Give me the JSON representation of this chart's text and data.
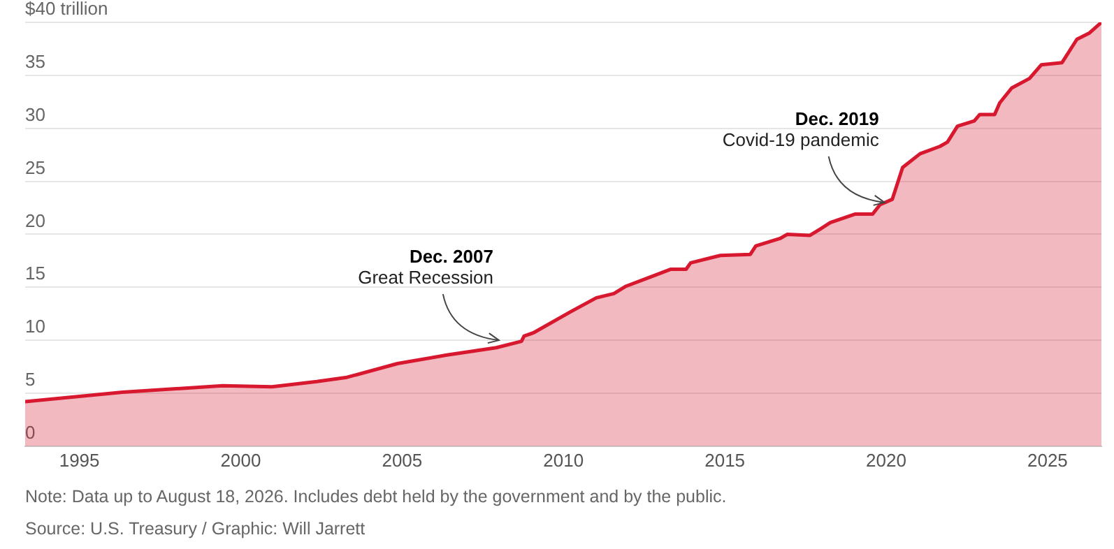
{
  "chart_data": {
    "type": "area",
    "x": [
      1993.32,
      1996.34,
      1999.44,
      2000.97,
      2002.36,
      2003.29,
      2004.86,
      2006.39,
      2007.92,
      2008.7,
      2008.78,
      2009.07,
      2010.23,
      2011.02,
      2011.56,
      2011.94,
      2012.72,
      2013.33,
      2013.8,
      2013.94,
      2014.86,
      2015.79,
      2015.96,
      2016.71,
      2016.94,
      2017.64,
      2017.96,
      2018.27,
      2019.03,
      2019.58,
      2019.81,
      2020.19,
      2020.51,
      2021.05,
      2021.67,
      2021.9,
      2022.21,
      2022.73,
      2022.9,
      2023.36,
      2023.52,
      2023.89,
      2024.44,
      2024.81,
      2025.45,
      2025.91,
      2026.3,
      2026.67
    ],
    "series": [
      {
        "color": "#d7182f",
        "values": [
          4.2,
          5.1,
          5.7,
          5.6,
          6.1,
          6.5,
          7.8,
          8.6,
          9.3,
          9.9,
          10.4,
          10.7,
          12.7,
          14.0,
          14.4,
          15.1,
          16.0,
          16.7,
          16.7,
          17.3,
          18.0,
          18.1,
          18.9,
          19.6,
          20.0,
          19.9,
          20.5,
          21.1,
          21.9,
          21.9,
          22.8,
          23.3,
          26.3,
          27.6,
          28.3,
          28.7,
          30.2,
          30.7,
          31.3,
          31.3,
          32.4,
          33.8,
          34.7,
          36.0,
          36.2,
          38.4,
          39.0,
          40.0
        ]
      }
    ],
    "xlim": [
      1993.32,
      2026.67
    ],
    "xticks": [
      1995,
      2000,
      2005,
      2010,
      2015,
      2020,
      2025
    ],
    "ylim": [
      0,
      40
    ],
    "yticks": [
      0,
      5,
      10,
      15,
      20,
      25,
      30,
      35,
      {
        "value": 40,
        "label": "$40 trillion"
      }
    ],
    "grid": "y",
    "annotations": [
      "Dec. 2007",
      {
        "text": "Great Recession",
        "x": 2008.0,
        "y": 10
      },
      "Dec. 2019",
      {
        "text": "Covid-19 pandemic",
        "x": 2019.95,
        "y": 23.0
      },
      "Note: Data up to August 18, 2026. Includes debt held by the government and by the public.",
      "Source: U.S. Treasury / Graphic: Will Jarrett"
    ]
  }
}
